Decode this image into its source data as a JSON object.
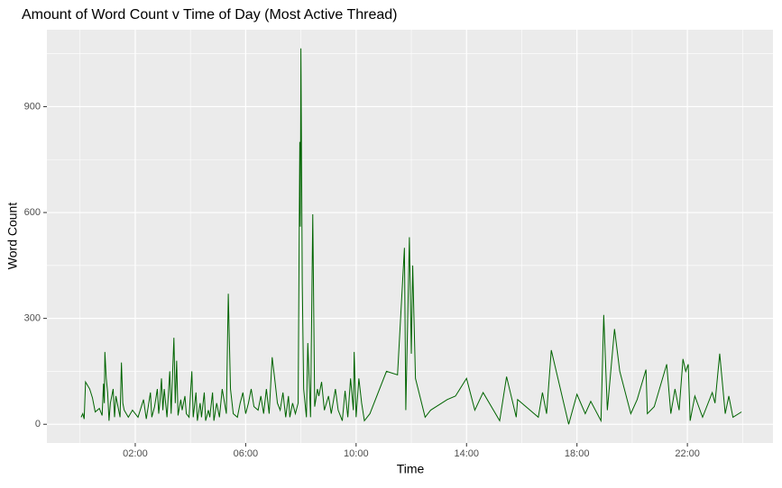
{
  "chart_data": {
    "type": "line",
    "title": "Amount of Word Count v Time of Day (Most Active Thread)",
    "x_label": "Time",
    "y_label": "Word Count",
    "color": "#006400",
    "xlim": [
      -1.2,
      25.1
    ],
    "ylim": [
      -53,
      1118
    ],
    "xticks": [
      {
        "value": 2,
        "label": "02:00"
      },
      {
        "value": 6,
        "label": "06:00"
      },
      {
        "value": 10,
        "label": "10:00"
      },
      {
        "value": 14,
        "label": "14:00"
      },
      {
        "value": 18,
        "label": "18:00"
      },
      {
        "value": 22,
        "label": "22:00"
      }
    ],
    "yticks": [
      0,
      300,
      600,
      900
    ],
    "x_minor_ticks": [
      0,
      4,
      8,
      12,
      16,
      20,
      24
    ],
    "y_minor_ticks": [
      150,
      450,
      750,
      1050
    ],
    "grid": true,
    "x": [
      0.04,
      0.1,
      0.15,
      0.2,
      0.35,
      0.45,
      0.55,
      0.7,
      0.8,
      0.85,
      0.88,
      0.9,
      0.95,
      1.0,
      1.05,
      1.1,
      1.2,
      1.25,
      1.3,
      1.4,
      1.45,
      1.5,
      1.55,
      1.6,
      1.75,
      1.9,
      2.1,
      2.3,
      2.4,
      2.55,
      2.6,
      2.7,
      2.8,
      2.85,
      2.9,
      2.95,
      3.0,
      3.05,
      3.15,
      3.25,
      3.3,
      3.4,
      3.45,
      3.5,
      3.55,
      3.65,
      3.7,
      3.8,
      3.85,
      3.95,
      4.05,
      4.1,
      4.2,
      4.25,
      4.35,
      4.4,
      4.5,
      4.55,
      4.65,
      4.7,
      4.8,
      4.85,
      4.95,
      5.05,
      5.15,
      5.3,
      5.37,
      5.45,
      5.55,
      5.7,
      5.8,
      5.9,
      6.0,
      6.1,
      6.2,
      6.3,
      6.45,
      6.55,
      6.65,
      6.75,
      6.85,
      6.96,
      7.05,
      7.15,
      7.25,
      7.35,
      7.45,
      7.55,
      7.6,
      7.7,
      7.8,
      7.9,
      7.96,
      7.98,
      8.0,
      8.05,
      8.1,
      8.2,
      8.25,
      8.35,
      8.43,
      8.5,
      8.6,
      8.65,
      8.75,
      8.85,
      9.0,
      9.1,
      9.25,
      9.35,
      9.5,
      9.6,
      9.7,
      9.8,
      9.9,
      9.93,
      10.0,
      10.1,
      10.2,
      10.3,
      10.5,
      11.1,
      11.5,
      11.75,
      11.8,
      11.93,
      12.0,
      12.05,
      12.15,
      12.5,
      12.7,
      13.3,
      13.6,
      14.0,
      14.3,
      14.6,
      15.2,
      15.45,
      15.8,
      15.85,
      16.6,
      16.75,
      16.9,
      17.07,
      17.7,
      18.0,
      18.3,
      18.5,
      18.87,
      18.97,
      19.1,
      19.36,
      19.55,
      19.95,
      20.18,
      20.5,
      20.55,
      20.8,
      21.25,
      21.4,
      21.55,
      21.7,
      21.84,
      21.94,
      22.03,
      22.1,
      22.27,
      22.55,
      22.9,
      23.0,
      23.17,
      23.37,
      23.5,
      23.65,
      23.96
    ],
    "values": [
      20,
      30,
      15,
      120,
      100,
      75,
      35,
      45,
      25,
      115,
      60,
      205,
      130,
      90,
      10,
      60,
      100,
      20,
      80,
      40,
      20,
      175,
      60,
      40,
      20,
      40,
      20,
      70,
      15,
      90,
      20,
      50,
      100,
      30,
      70,
      130,
      40,
      100,
      20,
      150,
      30,
      245,
      60,
      180,
      25,
      70,
      40,
      80,
      30,
      20,
      150,
      20,
      90,
      10,
      60,
      20,
      90,
      10,
      40,
      20,
      90,
      10,
      60,
      20,
      100,
      30,
      370,
      100,
      30,
      20,
      60,
      90,
      30,
      60,
      100,
      50,
      40,
      80,
      30,
      100,
      30,
      190,
      130,
      60,
      40,
      90,
      20,
      80,
      20,
      60,
      30,
      60,
      800,
      560,
      1065,
      400,
      100,
      20,
      230,
      20,
      595,
      50,
      100,
      80,
      120,
      40,
      80,
      30,
      100,
      40,
      10,
      95,
      20,
      130,
      40,
      205,
      20,
      130,
      60,
      10,
      30,
      150,
      140,
      500,
      40,
      530,
      200,
      450,
      130,
      20,
      40,
      70,
      80,
      130,
      40,
      90,
      10,
      135,
      20,
      70,
      20,
      90,
      30,
      210,
      0,
      85,
      30,
      65,
      10,
      310,
      40,
      270,
      150,
      30,
      70,
      155,
      30,
      50,
      170,
      30,
      100,
      40,
      185,
      150,
      170,
      10,
      80,
      20,
      90,
      60,
      200,
      30,
      80,
      20,
      35
    ]
  }
}
